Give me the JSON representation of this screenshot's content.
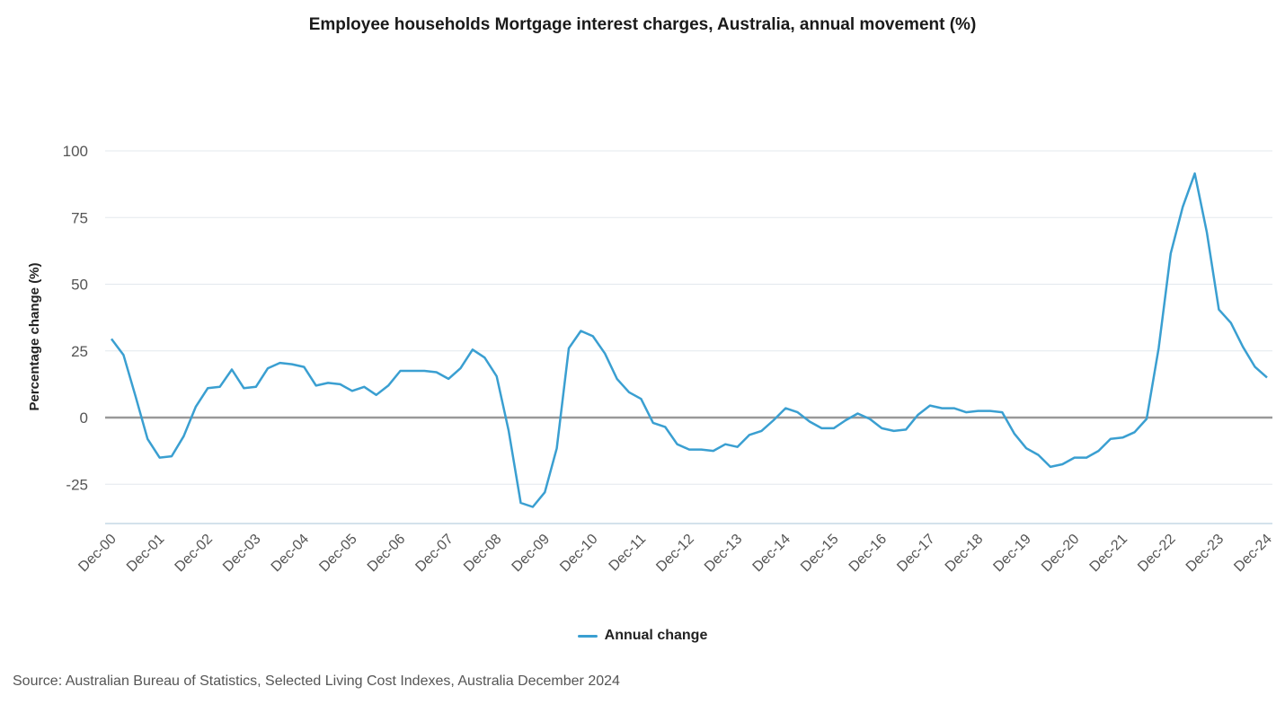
{
  "chart_data": {
    "type": "line",
    "title": "Employee households Mortgage interest charges, Australia, annual movement (%)",
    "ylabel": "Percentage change (%)",
    "xlabel": "",
    "ylim": [
      -40,
      100
    ],
    "yticks": [
      100,
      75,
      50,
      25,
      0,
      -25
    ],
    "ytick_labels": [
      "100",
      "75",
      "50",
      "25",
      "0",
      "-25"
    ],
    "grid": true,
    "legend_position": "bottom-center",
    "x_tick_labels": [
      "Dec-00",
      "Dec-01",
      "Dec-02",
      "Dec-03",
      "Dec-04",
      "Dec-05",
      "Dec-06",
      "Dec-07",
      "Dec-08",
      "Dec-09",
      "Dec-10",
      "Dec-11",
      "Dec-12",
      "Dec-13",
      "Dec-14",
      "Dec-15",
      "Dec-16",
      "Dec-17",
      "Dec-18",
      "Dec-19",
      "Dec-20",
      "Dec-21",
      "Dec-22",
      "Dec-23",
      "Dec-24"
    ],
    "x_frequency": "quarterly",
    "series": [
      {
        "name": "Annual change",
        "color": "#3a9fd1",
        "values": [
          29.5,
          23.5,
          8.0,
          -8.0,
          -15.0,
          -14.5,
          -7.0,
          4.0,
          11.0,
          11.5,
          18.0,
          11.0,
          11.5,
          18.5,
          20.5,
          20.0,
          19.0,
          12.0,
          13.0,
          12.5,
          10.0,
          11.5,
          8.5,
          12.0,
          17.5,
          17.5,
          17.5,
          17.0,
          14.5,
          18.5,
          25.5,
          22.5,
          15.5,
          -5.0,
          -32.0,
          -33.5,
          -28.0,
          -11.5,
          26.0,
          32.5,
          30.5,
          24.0,
          14.5,
          9.5,
          7.0,
          -2.0,
          -3.5,
          -10.0,
          -12.0,
          -12.0,
          -12.5,
          -10.0,
          -11.0,
          -6.5,
          -5.0,
          -1.0,
          3.5,
          2.0,
          -1.5,
          -4.0,
          -4.0,
          -1.0,
          1.5,
          -0.5,
          -4.0,
          -5.0,
          -4.5,
          1.0,
          4.5,
          3.5,
          3.5,
          2.0,
          2.5,
          2.5,
          2.0,
          -6.0,
          -11.5,
          -14.0,
          -18.5,
          -17.5,
          -15.0,
          -15.0,
          -12.5,
          -8.0,
          -7.5,
          -5.5,
          -0.5,
          26.0,
          61.5,
          79.0,
          91.5,
          69.5,
          40.5,
          35.5,
          26.5,
          19.0,
          15.0
        ]
      }
    ]
  },
  "legend": {
    "label": "Annual change",
    "color": "#3a9fd1"
  },
  "source": "Source: Australian Bureau of Statistics, Selected Living Cost Indexes, Australia December 2024",
  "colors": {
    "grid": "#e3e8ee",
    "zero_line": "#999999",
    "axis_line": "#c5d8e6"
  }
}
